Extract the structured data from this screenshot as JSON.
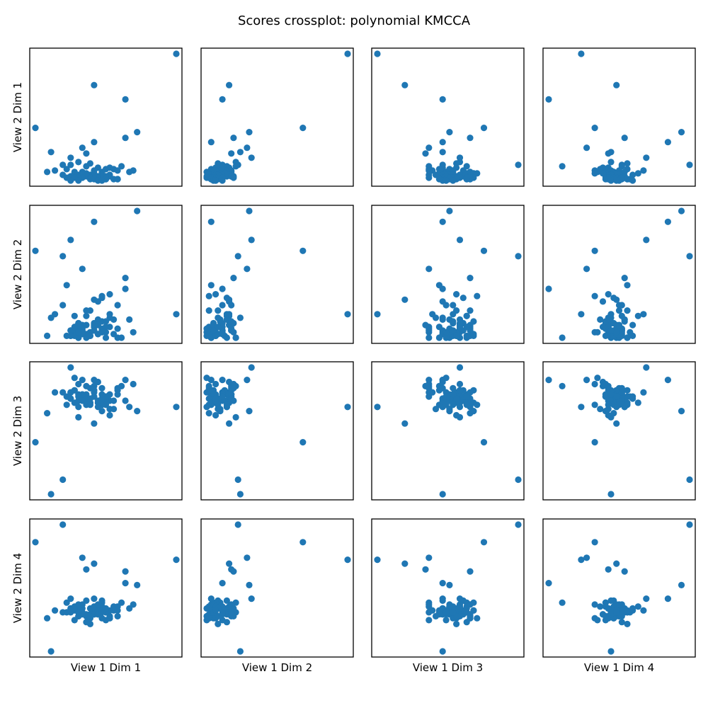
{
  "chart_data": {
    "type": "scatter",
    "title": "Scores crossplot: polynomial KMCCA",
    "marker_color": "#1f77b4",
    "grid": false,
    "ticks": false,
    "column_labels": [
      "View 1 Dim 1",
      "View 1 Dim 2",
      "View 1 Dim 3",
      "View 1 Dim 4"
    ],
    "row_labels": [
      "View 2 Dim 1",
      "View 2 Dim 2",
      "View 2 Dim 3",
      "View 2 Dim 4"
    ],
    "variables": {
      "x_view1": {
        "dim1": [
          0.41,
          0.09,
          0.12,
          0.05,
          0.2,
          0.28,
          0.31,
          0.28,
          0.2,
          0.18,
          0.17,
          0.14,
          0.16,
          0.19,
          0.14,
          0.18,
          0.27,
          0.21,
          0.24,
          0.25,
          0.13,
          0.23,
          0.1,
          0.26,
          0.3,
          0.2,
          0.22,
          0.08,
          0.29,
          0.17,
          0.15,
          0.15,
          0.18,
          0.22,
          0.15,
          0.2,
          0.22,
          0.17,
          0.12,
          0.16,
          0.24,
          0.24,
          0.22,
          0.19,
          0.18,
          0.21,
          0.14,
          0.16,
          0.2,
          0.24,
          0.2,
          0.18,
          0.17,
          0.23,
          0.21,
          0.19,
          0.16,
          0.13,
          0.14,
          0.17,
          0.16,
          0.22,
          0.19,
          0.15,
          0.23,
          0.21,
          0.2,
          0.25,
          0.26,
          0.19,
          0.23,
          0.23,
          0.26,
          0.21,
          0.22,
          0.14,
          0.16
        ],
        "dim2": [
          0.65,
          0.17,
          0.16,
          0.45,
          0.12,
          0.09,
          0.21,
          0.14,
          0.04,
          0.13,
          0.2,
          0.22,
          0.15,
          0.07,
          0.09,
          0.11,
          0.15,
          0.12,
          0.06,
          0.08,
          0.04,
          0.09,
          0.11,
          0.13,
          0.06,
          0.05,
          0.11,
          0.03,
          0.11,
          0.13,
          0.02,
          0.12,
          0.03,
          0.08,
          0.1,
          0.03,
          0.03,
          0.12,
          0.09,
          0.04,
          0.07,
          0.12,
          0.03,
          0.06,
          0.07,
          0.11,
          0.02,
          0.14,
          0.13,
          0.05,
          0.13,
          0.11,
          0.13,
          0.13,
          0.04,
          0.14,
          0.02,
          0.06,
          0.09,
          0.09,
          0.09,
          0.05,
          0.03,
          0.04,
          0.04,
          0.05,
          0.04,
          0.04,
          0.06,
          0.06,
          0.04,
          0.07,
          0.04,
          0.06,
          0.05,
          0.06,
          0.09
        ],
        "dim3": [
          0.09,
          0.28,
          0.5,
          0.4,
          0.17,
          0.28,
          0.3,
          0.36,
          0.28,
          0.23,
          0.24,
          0.33,
          0.33,
          0.32,
          0.28,
          0.35,
          0.24,
          0.28,
          0.32,
          0.3,
          0.27,
          0.24,
          0.25,
          0.31,
          0.24,
          0.34,
          0.34,
          0.36,
          0.28,
          0.31,
          0.29,
          0.35,
          0.36,
          0.37,
          0.37,
          0.27,
          0.38,
          0.33,
          0.29,
          0.3,
          0.26,
          0.31,
          0.24,
          0.33,
          0.28,
          0.33,
          0.32,
          0.33,
          0.34,
          0.36,
          0.33,
          0.29,
          0.33,
          0.31,
          0.37,
          0.28,
          0.36,
          0.35,
          0.24,
          0.3,
          0.31,
          0.32,
          0.31,
          0.33,
          0.35,
          0.36,
          0.36,
          0.29,
          0.3,
          0.32,
          0.3,
          0.35,
          0.27,
          0.28,
          0.31,
          0.29,
          0.29
        ],
        "dim4": [
          0.21,
          0.32,
          0.61,
          0.26,
          0.34,
          0.09,
          0.58,
          0.37,
          0.53,
          0.31,
          0.23,
          0.45,
          0.32,
          0.38,
          0.36,
          0.36,
          0.14,
          0.29,
          0.31,
          0.28,
          0.38,
          0.3,
          0.44,
          0.35,
          0.26,
          0.32,
          0.33,
          0.33,
          0.37,
          0.33,
          0.27,
          0.42,
          0.35,
          0.3,
          0.34,
          0.29,
          0.26,
          0.4,
          0.36,
          0.34,
          0.31,
          0.32,
          0.36,
          0.35,
          0.32,
          0.37,
          0.35,
          0.3,
          0.35,
          0.31,
          0.34,
          0.35,
          0.36,
          0.37,
          0.36,
          0.31,
          0.34,
          0.3,
          0.36,
          0.32,
          0.33,
          0.36,
          0.33,
          0.31,
          0.38,
          0.35,
          0.32,
          0.34,
          0.3,
          0.36,
          0.39,
          0.31,
          0.38,
          0.35,
          0.32,
          0.4,
          0.34
        ]
      },
      "y_view2": {
        "dim1": [
          0.9,
          0.21,
          0.12,
          0.38,
          0.68,
          0.58,
          0.35,
          0.31,
          0.28,
          0.2,
          0.24,
          0.17,
          0.14,
          0.13,
          0.12,
          0.11,
          0.11,
          0.1,
          0.1,
          0.09,
          0.09,
          0.09,
          0.08,
          0.08,
          0.08,
          0.08,
          0.07,
          0.07,
          0.07,
          0.07,
          0.07,
          0.06,
          0.06,
          0.06,
          0.06,
          0.06,
          0.06,
          0.05,
          0.05,
          0.05,
          0.05,
          0.05,
          0.05,
          0.05,
          0.05,
          0.04,
          0.04,
          0.04,
          0.04,
          0.04,
          0.04,
          0.04,
          0.04,
          0.04,
          0.03,
          0.03,
          0.03,
          0.03,
          0.03,
          0.03,
          0.03,
          0.03,
          0.03,
          0.03,
          0.02,
          0.02,
          0.02,
          0.02,
          0.02,
          0.02,
          0.02,
          0.02,
          0.02,
          0.01,
          0.01,
          0.01,
          0.01
        ],
        "dim2": [
          0.15,
          0.13,
          0.47,
          0.5,
          0.23,
          0.29,
          0.72,
          0.35,
          0.66,
          0.09,
          0.4,
          0.56,
          0.02,
          0.17,
          0.06,
          0.14,
          0.02,
          0.22,
          0.26,
          0.12,
          0.31,
          0.08,
          0.15,
          0.2,
          0.05,
          0.1,
          0.24,
          0.03,
          0.12,
          0.06,
          0.05,
          0.14,
          0.17,
          0.11,
          0.03,
          0.08,
          0.25,
          0.09,
          0.2,
          0.02,
          0.13,
          0.15,
          0.07,
          0.05,
          0.04,
          0.12,
          0.03,
          0.1,
          0.06,
          0.08,
          0.09,
          0.02,
          0.07,
          0.11,
          0.04,
          0.05,
          0.07,
          0.03,
          0.06,
          0.04,
          0.1,
          0.05,
          0.03,
          0.08,
          0.02,
          0.09,
          0.06,
          0.04,
          0.07,
          0.03,
          0.05,
          0.08,
          0.02,
          0.04,
          0.06,
          0.03,
          0.05
        ],
        "dim3": [
          0.6,
          0.18,
          0.25,
          0.43,
          0.52,
          0.73,
          0.58,
          0.63,
          0.73,
          0.7,
          0.73,
          0.79,
          0.55,
          0.62,
          0.64,
          0.66,
          0.7,
          0.72,
          0.56,
          0.59,
          0.61,
          0.65,
          0.67,
          0.69,
          0.71,
          0.68,
          0.63,
          0.57,
          0.6,
          0.66,
          0.74,
          0.62,
          0.64,
          0.58,
          0.68,
          0.7,
          0.61,
          0.65,
          0.67,
          0.63,
          0.59,
          0.66,
          0.69,
          0.62,
          0.64,
          0.6,
          0.67,
          0.71,
          0.65,
          0.63,
          0.68,
          0.61,
          0.66,
          0.64,
          0.62,
          0.69,
          0.6,
          0.65,
          0.67,
          0.63,
          0.66,
          0.64,
          0.61,
          0.68,
          0.65,
          0.62,
          0.67,
          0.63,
          0.66,
          0.64,
          0.65,
          0.61,
          0.68,
          0.63,
          0.66,
          0.64,
          0.65
        ],
        "dim4": [
          0.57,
          0.1,
          0.75,
          0.66,
          0.55,
          0.45,
          0.44,
          0.51,
          0.37,
          0.52,
          0.58,
          0.37,
          0.3,
          0.24,
          0.32,
          0.25,
          0.35,
          0.29,
          0.27,
          0.33,
          0.3,
          0.26,
          0.31,
          0.28,
          0.34,
          0.29,
          0.36,
          0.27,
          0.32,
          0.3,
          0.26,
          0.33,
          0.28,
          0.35,
          0.31,
          0.29,
          0.27,
          0.32,
          0.3,
          0.34,
          0.28,
          0.31,
          0.33,
          0.29,
          0.36,
          0.3,
          0.32,
          0.28,
          0.31,
          0.27,
          0.33,
          0.29,
          0.34,
          0.3,
          0.31,
          0.32,
          0.28,
          0.35,
          0.3,
          0.29,
          0.33,
          0.31,
          0.27,
          0.32,
          0.3,
          0.34,
          0.29,
          0.31,
          0.33,
          0.28,
          0.3,
          0.32,
          0.31,
          0.29,
          0.3,
          0.31,
          0.3
        ]
      }
    },
    "xlim": [
      0,
      0.7
    ],
    "ylim": [
      0,
      0.95
    ]
  }
}
